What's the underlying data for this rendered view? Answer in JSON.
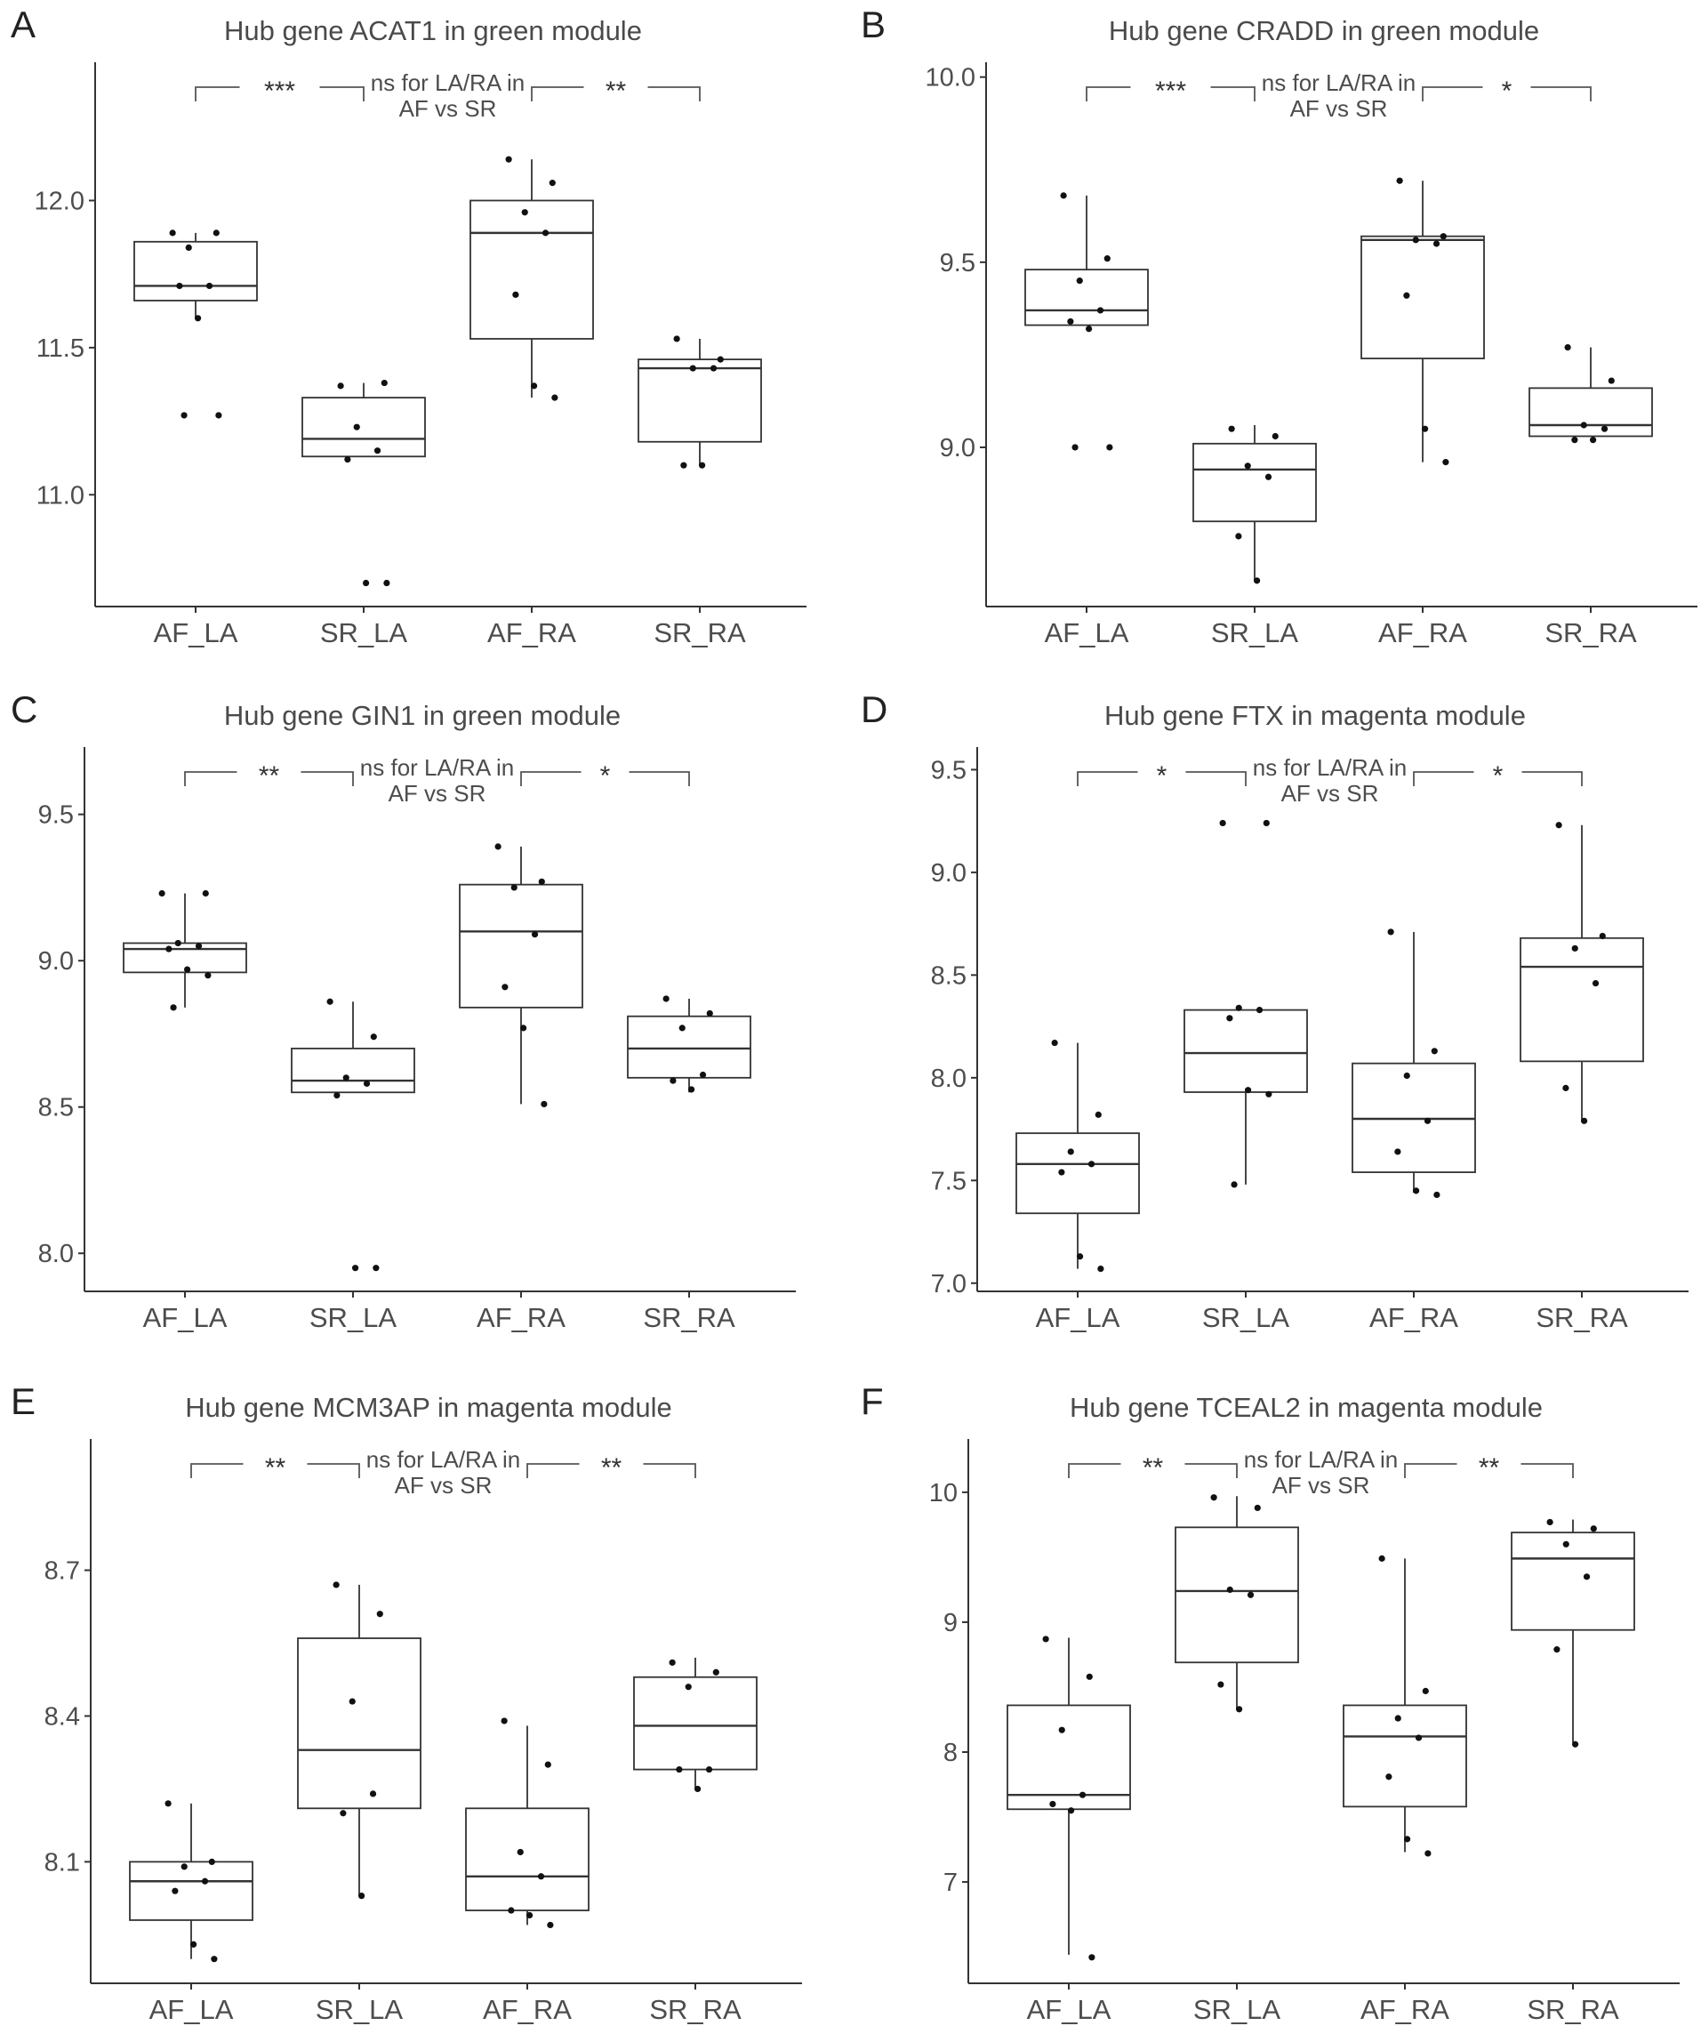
{
  "colors": {
    "axis": "#333333",
    "text": "#4d4d4d",
    "point": "#111111",
    "box": "#333333"
  },
  "chart_data": [
    {
      "type": "box",
      "panel": "A",
      "title": "Hub gene ACAT1 in green module",
      "ylim": [
        10.62,
        12.47
      ],
      "yticks": [
        "11.0",
        "11.5",
        "12.0"
      ],
      "categories": [
        "AF_LA",
        "SR_LA",
        "AF_RA",
        "SR_RA"
      ],
      "ns_text": [
        "ns for LA/RA in",
        "AF vs SR"
      ],
      "sig_left": "***",
      "sig_right": "**",
      "boxes": [
        {
          "q1": 11.66,
          "median": 11.71,
          "q3": 11.86,
          "lo": 11.6,
          "hi": 11.89,
          "points": [
            11.89,
            11.89,
            11.84,
            11.71,
            11.71,
            11.6,
            11.27,
            11.27
          ]
        },
        {
          "q1": 11.13,
          "median": 11.19,
          "q3": 11.33,
          "lo": 11.13,
          "hi": 11.38,
          "points": [
            11.37,
            11.38,
            11.23,
            11.15,
            11.12,
            10.7,
            10.7
          ]
        },
        {
          "q1": 11.53,
          "median": 11.89,
          "q3": 12.0,
          "lo": 11.33,
          "hi": 12.14,
          "points": [
            12.14,
            12.06,
            11.96,
            11.89,
            11.68,
            11.37,
            11.33
          ]
        },
        {
          "q1": 11.18,
          "median": 11.43,
          "q3": 11.46,
          "lo": 11.1,
          "hi": 11.53,
          "points": [
            11.53,
            11.46,
            11.43,
            11.43,
            11.1,
            11.1
          ]
        }
      ]
    },
    {
      "type": "box",
      "panel": "B",
      "title": "Hub gene CRADD in green module",
      "ylim": [
        8.57,
        10.04
      ],
      "yticks": [
        "9.0",
        "9.5",
        "10.0"
      ],
      "categories": [
        "AF_LA",
        "SR_LA",
        "AF_RA",
        "SR_RA"
      ],
      "ns_text": [
        "ns for LA/RA in",
        "AF vs SR"
      ],
      "sig_left": "***",
      "sig_right": "*",
      "boxes": [
        {
          "q1": 9.33,
          "median": 9.37,
          "q3": 9.48,
          "lo": 9.33,
          "hi": 9.68,
          "points": [
            9.68,
            9.51,
            9.45,
            9.37,
            9.34,
            9.32,
            9.0,
            9.0
          ]
        },
        {
          "q1": 8.8,
          "median": 8.94,
          "q3": 9.01,
          "lo": 8.64,
          "hi": 9.06,
          "points": [
            9.05,
            9.03,
            8.95,
            8.92,
            8.76,
            8.64
          ]
        },
        {
          "q1": 9.24,
          "median": 9.56,
          "q3": 9.57,
          "lo": 8.96,
          "hi": 9.72,
          "points": [
            9.72,
            9.57,
            9.56,
            9.55,
            9.41,
            9.05,
            8.96
          ]
        },
        {
          "q1": 9.03,
          "median": 9.06,
          "q3": 9.16,
          "lo": 9.03,
          "hi": 9.27,
          "points": [
            9.27,
            9.18,
            9.06,
            9.05,
            9.02,
            9.02
          ]
        }
      ]
    },
    {
      "type": "box",
      "panel": "C",
      "title": "Hub gene GIN1 in green module",
      "ylim": [
        7.87,
        9.73
      ],
      "yticks": [
        "8.0",
        "8.5",
        "9.0",
        "9.5"
      ],
      "categories": [
        "AF_LA",
        "SR_LA",
        "AF_RA",
        "SR_RA"
      ],
      "ns_text": [
        "ns for LA/RA in",
        "AF vs SR"
      ],
      "sig_left": "**",
      "sig_right": "*",
      "boxes": [
        {
          "q1": 8.96,
          "median": 9.04,
          "q3": 9.06,
          "lo": 8.84,
          "hi": 9.23,
          "points": [
            9.23,
            9.23,
            9.06,
            9.05,
            9.04,
            8.97,
            8.95,
            8.84
          ]
        },
        {
          "q1": 8.55,
          "median": 8.59,
          "q3": 8.7,
          "lo": 8.55,
          "hi": 8.86,
          "points": [
            8.86,
            8.74,
            8.6,
            8.58,
            8.54,
            7.95,
            7.95
          ]
        },
        {
          "q1": 8.84,
          "median": 9.1,
          "q3": 9.26,
          "lo": 8.51,
          "hi": 9.39,
          "points": [
            9.39,
            9.27,
            9.25,
            9.09,
            8.91,
            8.77,
            8.51
          ]
        },
        {
          "q1": 8.6,
          "median": 8.7,
          "q3": 8.81,
          "lo": 8.55,
          "hi": 8.87,
          "points": [
            8.87,
            8.82,
            8.77,
            8.61,
            8.59,
            8.56
          ]
        }
      ]
    },
    {
      "type": "box",
      "panel": "D",
      "title": "Hub gene FTX in magenta module",
      "ylim": [
        6.96,
        9.61
      ],
      "yticks": [
        "7.0",
        "7.5",
        "8.0",
        "8.5",
        "9.0",
        "9.5"
      ],
      "categories": [
        "AF_LA",
        "SR_LA",
        "AF_RA",
        "SR_RA"
      ],
      "ns_text": [
        "ns for LA/RA in",
        "AF vs SR"
      ],
      "sig_left": "*",
      "sig_right": "*",
      "boxes": [
        {
          "q1": 7.34,
          "median": 7.58,
          "q3": 7.73,
          "lo": 7.07,
          "hi": 8.17,
          "points": [
            8.17,
            7.82,
            7.64,
            7.58,
            7.54,
            7.13,
            7.07
          ]
        },
        {
          "q1": 7.93,
          "median": 8.12,
          "q3": 8.33,
          "lo": 7.48,
          "hi": 8.33,
          "points": [
            9.24,
            9.24,
            8.34,
            8.33,
            8.29,
            7.94,
            7.92,
            7.48
          ]
        },
        {
          "q1": 7.54,
          "median": 7.8,
          "q3": 8.07,
          "lo": 7.44,
          "hi": 8.71,
          "points": [
            8.71,
            8.13,
            8.01,
            7.79,
            7.64,
            7.45,
            7.43
          ]
        },
        {
          "q1": 8.08,
          "median": 8.54,
          "q3": 8.68,
          "lo": 7.79,
          "hi": 9.23,
          "points": [
            9.23,
            8.69,
            8.63,
            8.46,
            7.95,
            7.79
          ]
        }
      ]
    },
    {
      "type": "box",
      "panel": "E",
      "title": "Hub gene MCM3AP in magenta module",
      "ylim": [
        7.85,
        8.97
      ],
      "yticks": [
        "8.1",
        "8.4",
        "8.7"
      ],
      "categories": [
        "AF_LA",
        "SR_LA",
        "AF_RA",
        "SR_RA"
      ],
      "ns_text": [
        "ns for LA/RA in",
        "AF vs SR"
      ],
      "sig_left": "**",
      "sig_right": "**",
      "boxes": [
        {
          "q1": 7.98,
          "median": 8.06,
          "q3": 8.1,
          "lo": 7.9,
          "hi": 8.22,
          "points": [
            8.22,
            8.1,
            8.09,
            8.06,
            8.04,
            7.93,
            7.9
          ]
        },
        {
          "q1": 8.21,
          "median": 8.33,
          "q3": 8.56,
          "lo": 8.03,
          "hi": 8.67,
          "points": [
            8.67,
            8.61,
            8.43,
            8.24,
            8.2,
            8.03
          ]
        },
        {
          "q1": 8.0,
          "median": 8.07,
          "q3": 8.21,
          "lo": 7.97,
          "hi": 8.38,
          "points": [
            8.39,
            8.3,
            8.12,
            8.07,
            8.0,
            7.99,
            7.97
          ]
        },
        {
          "q1": 8.29,
          "median": 8.38,
          "q3": 8.48,
          "lo": 8.25,
          "hi": 8.52,
          "points": [
            8.51,
            8.49,
            8.46,
            8.29,
            8.29,
            8.25
          ]
        }
      ]
    },
    {
      "type": "box",
      "panel": "F",
      "title": "Hub gene TCEAL2 in magenta module",
      "ylim": [
        6.22,
        10.41
      ],
      "yticks": [
        "7",
        "8",
        "9",
        "10"
      ],
      "categories": [
        "AF_LA",
        "SR_LA",
        "AF_RA",
        "SR_RA"
      ],
      "ns_text": [
        "ns for LA/RA in",
        "AF vs SR"
      ],
      "sig_left": "**",
      "sig_right": "**",
      "boxes": [
        {
          "q1": 7.56,
          "median": 7.67,
          "q3": 8.36,
          "lo": 6.44,
          "hi": 8.88,
          "points": [
            8.87,
            8.58,
            8.17,
            7.67,
            7.6,
            7.55,
            6.42
          ]
        },
        {
          "q1": 8.69,
          "median": 9.24,
          "q3": 9.73,
          "lo": 8.33,
          "hi": 9.97,
          "points": [
            9.96,
            9.88,
            9.25,
            9.21,
            8.52,
            8.33
          ]
        },
        {
          "q1": 7.58,
          "median": 8.12,
          "q3": 8.36,
          "lo": 7.23,
          "hi": 9.49,
          "points": [
            9.49,
            8.47,
            8.26,
            8.11,
            7.81,
            7.33,
            7.22
          ]
        },
        {
          "q1": 8.94,
          "median": 9.49,
          "q3": 9.69,
          "lo": 8.07,
          "hi": 9.79,
          "points": [
            9.77,
            9.72,
            9.6,
            9.35,
            8.79,
            8.06
          ]
        }
      ]
    }
  ]
}
